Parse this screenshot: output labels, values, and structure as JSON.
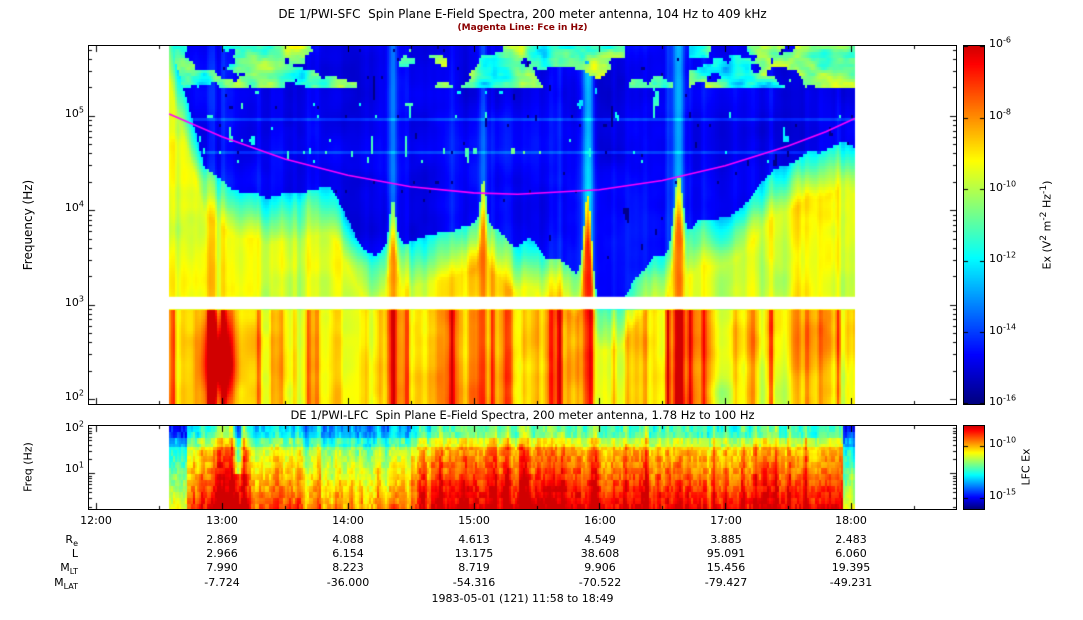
{
  "chart_data": [
    {
      "type": "heatmap",
      "instrument": "DE 1/PWI-SFC",
      "title": "DE 1/PWI-SFC  Spin Plane E-Field Spectra, 200 meter antenna, 104 Hz to 409 kHz",
      "subtitle": "(Magenta Line: Fce in Hz)",
      "ylabel": "Frequency (Hz)",
      "yscale": "log",
      "freq_range_hz": [
        104,
        409000
      ],
      "yticks": [
        {
          "base": "10",
          "exp": "5"
        },
        {
          "base": "10",
          "exp": "4"
        },
        {
          "base": "10",
          "exp": "3"
        },
        {
          "base": "10",
          "exp": "2"
        }
      ],
      "data_gap_band_hz": [
        900,
        1220
      ],
      "time_coverage_hours": [
        12.58,
        18.03
      ],
      "colorbar": {
        "palette": "rainbow-jet",
        "min_exp": -16,
        "max_exp": -6,
        "label_parts": [
          "Ex (V",
          "2",
          " m",
          "-2",
          " Hz",
          "-1",
          ")"
        ],
        "ticks": [
          {
            "base": "10",
            "exp": "-6"
          },
          {
            "base": "10",
            "exp": "-8"
          },
          {
            "base": "10",
            "exp": "-10"
          },
          {
            "base": "10",
            "exp": "-12"
          },
          {
            "base": "10",
            "exp": "-14"
          },
          {
            "base": "10",
            "exp": "-16"
          }
        ]
      },
      "fce_line": {
        "color": "#ff00ff",
        "label": "Fce in Hz",
        "t_hours": [
          12.58,
          13.0,
          13.5,
          14.0,
          14.5,
          15.0,
          15.35,
          16.0,
          16.5,
          17.0,
          17.5,
          17.8,
          18.03
        ],
        "f_hz": [
          105000,
          60000,
          35000,
          23500,
          17800,
          15300,
          14800,
          16500,
          20700,
          29600,
          48000,
          68000,
          94000
        ]
      },
      "features": [
        "dark blue low-intensity background above the electron cyclotron (Fce) line",
        "green/yellow enhanced emission below ~10 kHz with vertical burst striations near 13:00, 15:50 and 16:40",
        "white data-gap band near 1 kHz",
        "mottled green patches at the top edge (~3-4e5 Hz), densest before 13:30 and after 16:45"
      ]
    },
    {
      "type": "heatmap",
      "instrument": "DE 1/PWI-LFC",
      "title": "DE 1/PWI-LFC  Spin Plane E-Field Spectra, 200 meter antenna, 1.78 Hz to 100 Hz",
      "ylabel": "Freq (Hz)",
      "yscale": "log",
      "freq_range_hz": [
        1.78,
        100
      ],
      "yticks": [
        {
          "base": "10",
          "exp": "2"
        },
        {
          "base": "10",
          "exp": "1"
        }
      ],
      "time_coverage_hours": [
        12.58,
        18.03
      ],
      "colorbar": {
        "palette": "rainbow-jet",
        "label": "LFC Ex",
        "ticks": [
          {
            "base": "10",
            "exp": "-10"
          },
          {
            "base": "10",
            "exp": "-15"
          }
        ]
      },
      "features": [
        "green near 100 Hz grading to yellow/orange/red at lower frequencies",
        "red saturated columns 15:00-18:00 and near 13:00",
        "green column at the very end near 18:00"
      ]
    }
  ],
  "xaxis": {
    "tick_labels": [
      "12:00",
      "13:00",
      "14:00",
      "15:00",
      "16:00",
      "17:00",
      "18:00"
    ],
    "range": "11:58 to 18:49"
  },
  "ephemeris": {
    "column_times": [
      "13:00",
      "14:00",
      "15:00",
      "16:00",
      "17:00",
      "18:00"
    ],
    "rows": [
      {
        "label_base": "R",
        "label_sub": "e",
        "values": [
          "2.869",
          "4.088",
          "4.613",
          "4.549",
          "3.885",
          "2.483"
        ]
      },
      {
        "label_base": "L",
        "label_sub": "",
        "values": [
          "2.966",
          "6.154",
          "13.175",
          "38.608",
          "95.091",
          "6.060"
        ]
      },
      {
        "label_base": "M",
        "label_sub": "LT",
        "values": [
          "7.990",
          "8.223",
          "8.719",
          "9.906",
          "15.456",
          "19.395"
        ]
      },
      {
        "label_base": "M",
        "label_sub": "LAT",
        "values": [
          "-7.724",
          "-36.000",
          "-54.316",
          "-70.522",
          "-79.427",
          "-49.231"
        ]
      }
    ]
  },
  "footer": "1983-05-01 (121) 11:58 to 18:49"
}
